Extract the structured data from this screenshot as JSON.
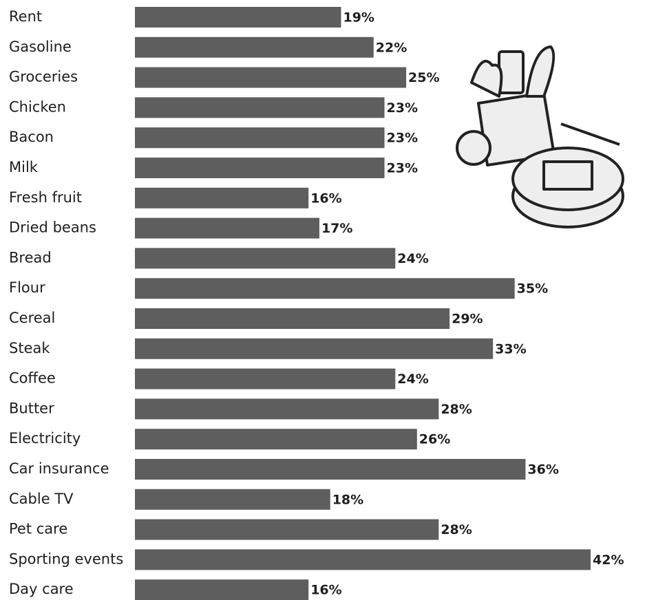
{
  "chart_data": {
    "type": "hbar",
    "color": "#5e5e5e",
    "categories": [
      "Rent",
      "Gasoline",
      "Groceries",
      "Chicken",
      "Bacon",
      "Milk",
      "Fresh fruit",
      "Dried beans",
      "Bread",
      "Flour",
      "Cereal",
      "Steak",
      "Coffee",
      "Butter",
      "Electricity",
      "Car insurance",
      "Cable TV",
      "Pet care",
      "Sporting events",
      "Day care"
    ],
    "values": [
      19,
      22,
      25,
      23,
      23,
      23,
      16,
      17,
      24,
      35,
      29,
      33,
      24,
      28,
      26,
      36,
      18,
      28,
      42,
      16
    ],
    "value_labels": [
      "19%",
      "22%",
      "25%",
      "23%",
      "23%",
      "23%",
      "16%",
      "17%",
      "24%",
      "35%",
      "29%",
      "33%",
      "24%",
      "28%",
      "26%",
      "36%",
      "18%",
      "28%",
      "42%",
      "16%"
    ]
  }
}
